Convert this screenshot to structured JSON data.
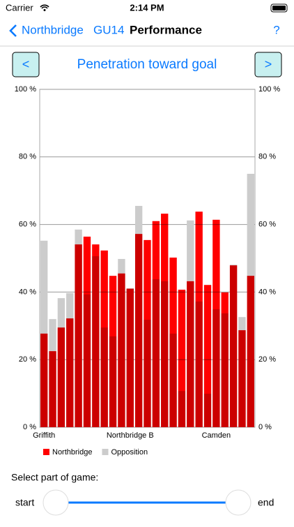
{
  "status_bar": {
    "carrier": "Carrier",
    "time": "2:14 PM"
  },
  "nav": {
    "back": "Northbridge",
    "team": "GU14",
    "title": "Performance",
    "help": "?"
  },
  "header": {
    "prev": "<",
    "next": ">"
  },
  "chart_data": {
    "type": "bar",
    "title": "Penetration toward goal",
    "categories": [
      "Griffith",
      null,
      null,
      null,
      null,
      null,
      null,
      null,
      null,
      null,
      "Northbridge B",
      null,
      null,
      null,
      null,
      null,
      null,
      null,
      null,
      null,
      "Camden",
      null,
      null,
      null,
      null
    ],
    "series": [
      {
        "name": "Northbridge",
        "color": "#ff0000",
        "values": [
          27.7,
          22.5,
          29.5,
          32.2,
          54.1,
          56.4,
          54.1,
          52.3,
          44.8,
          45.5,
          41,
          57.2,
          55.4,
          61,
          63.2,
          50.2,
          40.7,
          43.2,
          63.8,
          42.1,
          61.4,
          39.9,
          47.9,
          28.7,
          44.8
        ]
      },
      {
        "name": "Opposition",
        "color": "#cccccc",
        "values": [
          55.2,
          32,
          38.2,
          39.7,
          58.5,
          39.3,
          50.6,
          29.5,
          26.9,
          49.8,
          41.1,
          65.5,
          31.8,
          43.8,
          43.2,
          27.7,
          10.7,
          61.2,
          37.2,
          9.9,
          34.9,
          33.7,
          48.1,
          32.6,
          75
        ]
      }
    ],
    "ylim": [
      0,
      100
    ],
    "yticks": [
      {
        "value": 0,
        "label": "0 %"
      },
      {
        "value": 20,
        "label": "20 %"
      },
      {
        "value": 40,
        "label": "40 %"
      },
      {
        "value": 60,
        "label": "60 %"
      },
      {
        "value": 80,
        "label": "80 %"
      },
      {
        "value": 100,
        "label": "100 %"
      }
    ],
    "y2lim": [
      0,
      100
    ],
    "y2ticks": [
      {
        "value": 0,
        "label": "0 %"
      },
      {
        "value": 20,
        "label": "20 %"
      },
      {
        "value": 40,
        "label": "40 %"
      },
      {
        "value": 60,
        "label": "60 %"
      },
      {
        "value": 80,
        "label": "80 %"
      },
      {
        "value": 100,
        "label": "100 %"
      }
    ],
    "grid": true,
    "overlay": true,
    "legend": "bottom"
  },
  "slider": {
    "label": "Select part of game:",
    "start": "start",
    "end": "end"
  }
}
